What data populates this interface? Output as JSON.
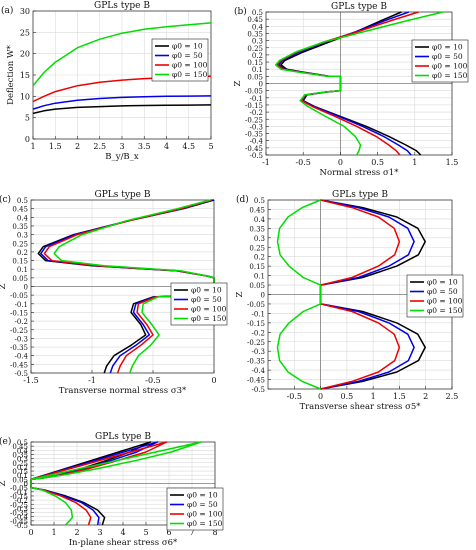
{
  "chart_data": [
    {
      "panel_label": "(a)",
      "type": "line",
      "title": "GPLs type B",
      "xlabel": "B_y/B_x",
      "ylabel": "Deflection W*",
      "xlim": [
        1,
        5
      ],
      "ylim": [
        0,
        30
      ],
      "xticks": [
        "1",
        "1.5",
        "2",
        "2.5",
        "3",
        "3.5",
        "4",
        "4.5",
        "5"
      ],
      "yticks": [
        "0",
        "5",
        "10",
        "15",
        "20",
        "25",
        "30"
      ],
      "grid": true,
      "legend": "center-right",
      "series": [
        {
          "name": "φ0 = 10",
          "color": "#000000",
          "x": [
            1,
            1.25,
            1.5,
            2,
            2.5,
            3,
            3.5,
            4,
            4.5,
            5
          ],
          "y": [
            6.0,
            6.6,
            7.0,
            7.4,
            7.6,
            7.75,
            7.85,
            7.9,
            7.95,
            8.0
          ]
        },
        {
          "name": "φ0 = 50",
          "color": "#0000ee",
          "x": [
            1,
            1.25,
            1.5,
            2,
            2.5,
            3,
            3.5,
            4,
            4.5,
            5
          ],
          "y": [
            7.0,
            7.8,
            8.4,
            9.1,
            9.5,
            9.75,
            9.9,
            10.0,
            10.05,
            10.1
          ]
        },
        {
          "name": "φ0 = 100",
          "color": "#ee0000",
          "x": [
            1,
            1.25,
            1.5,
            2,
            2.5,
            3,
            3.5,
            4,
            4.5,
            5
          ],
          "y": [
            8.8,
            10.0,
            11.1,
            12.5,
            13.3,
            13.8,
            14.15,
            14.4,
            14.55,
            14.7
          ]
        },
        {
          "name": "φ0 = 150",
          "color": "#00dd00",
          "x": [
            1,
            1.25,
            1.5,
            2,
            2.5,
            3,
            3.5,
            4,
            4.5,
            5
          ],
          "y": [
            12.5,
            15.6,
            18.0,
            21.4,
            23.4,
            24.8,
            25.7,
            26.3,
            26.8,
            27.2
          ]
        }
      ]
    },
    {
      "panel_label": "(b)",
      "type": "line",
      "title": "GPLs type B",
      "xlabel": "Normal stress σ1*",
      "ylabel": "Z",
      "xlim": [
        -1,
        1.5
      ],
      "ylim": [
        -0.5,
        0.5
      ],
      "xticks": [
        "-1",
        "-0.5",
        "0",
        "0.5",
        "1",
        "1.5"
      ],
      "yticks": [
        "-0.5",
        "-0.45",
        "-0.4",
        "-0.35",
        "-0.3",
        "-0.25",
        "-0.2",
        "-0.15",
        "-0.1",
        "-0.05",
        "0",
        "0.05",
        "0.1",
        "0.15",
        "0.2",
        "0.25",
        "0.3",
        "0.35",
        "0.4",
        "0.45",
        "0.5"
      ],
      "grid": true,
      "legend": "right",
      "series": [
        {
          "name": "φ0 = 10",
          "color": "#000000",
          "x": [
            0.82,
            0.55,
            0.2,
            -0.15,
            -0.5,
            -0.75,
            -0.8,
            -0.72,
            -0.5,
            -0.15,
            0,
            0,
            -0.2,
            -0.45,
            -0.5,
            -0.35,
            0,
            0.35,
            0.65,
            0.88,
            1.02,
            1.08
          ],
          "y": [
            0.5,
            0.44,
            0.36,
            0.29,
            0.22,
            0.16,
            0.13,
            0.1,
            0.08,
            0.05,
            0.05,
            -0.05,
            -0.06,
            -0.08,
            -0.12,
            -0.16,
            -0.23,
            -0.3,
            -0.37,
            -0.43,
            -0.47,
            -0.5
          ]
        },
        {
          "name": "φ0 = 50",
          "color": "#0000ee",
          "x": [
            0.92,
            0.6,
            0.2,
            -0.2,
            -0.55,
            -0.78,
            -0.83,
            -0.75,
            -0.52,
            -0.16,
            0,
            0,
            -0.2,
            -0.46,
            -0.51,
            -0.36,
            -0.02,
            0.3,
            0.58,
            0.78,
            0.9,
            0.95
          ],
          "y": [
            0.5,
            0.44,
            0.36,
            0.29,
            0.22,
            0.16,
            0.13,
            0.1,
            0.08,
            0.05,
            0.05,
            -0.05,
            -0.06,
            -0.08,
            -0.12,
            -0.16,
            -0.23,
            -0.3,
            -0.37,
            -0.43,
            -0.47,
            -0.5
          ]
        },
        {
          "name": "φ0 = 100",
          "color": "#ee0000",
          "x": [
            1.05,
            0.68,
            0.22,
            -0.22,
            -0.58,
            -0.8,
            -0.85,
            -0.77,
            -0.54,
            -0.17,
            0,
            0,
            -0.21,
            -0.47,
            -0.52,
            -0.38,
            -0.07,
            0.22,
            0.48,
            0.65,
            0.75,
            0.8
          ],
          "y": [
            0.5,
            0.44,
            0.36,
            0.29,
            0.22,
            0.16,
            0.13,
            0.1,
            0.08,
            0.05,
            0.05,
            -0.05,
            -0.06,
            -0.08,
            -0.12,
            -0.16,
            -0.23,
            -0.3,
            -0.37,
            -0.43,
            -0.47,
            -0.5
          ]
        },
        {
          "name": "φ0 = 150",
          "color": "#00dd00",
          "x": [
            1.38,
            0.9,
            0.3,
            -0.22,
            -0.6,
            -0.82,
            -0.87,
            -0.8,
            -0.56,
            -0.18,
            0,
            0,
            -0.22,
            -0.48,
            -0.54,
            -0.44,
            -0.2,
            0.05,
            0.2,
            0.27,
            0.25,
            0.22
          ],
          "y": [
            0.5,
            0.44,
            0.36,
            0.29,
            0.22,
            0.16,
            0.13,
            0.1,
            0.08,
            0.05,
            0.05,
            -0.05,
            -0.06,
            -0.08,
            -0.12,
            -0.16,
            -0.23,
            -0.3,
            -0.37,
            -0.43,
            -0.47,
            -0.5
          ]
        }
      ]
    },
    {
      "panel_label": "(c)",
      "type": "line",
      "title": "GPLs type B",
      "xlabel": "Transverse normal stress σ3*",
      "ylabel": "Z",
      "xlim": [
        -1.5,
        0
      ],
      "ylim": [
        -0.5,
        0.5
      ],
      "xticks": [
        "-1.5",
        "-1",
        "-0.5",
        "0"
      ],
      "yticks": [
        "-0.5",
        "-0.45",
        "-0.4",
        "-0.35",
        "-0.3",
        "-0.25",
        "-0.2",
        "-0.15",
        "-0.1",
        "-0.05",
        "0",
        "0.05",
        "0.1",
        "0.15",
        "0.2",
        "0.25",
        "0.3",
        "0.35",
        "0.4",
        "0.45",
        "0.5"
      ],
      "grid": true,
      "legend": "lower-right",
      "series": [
        {
          "name": "φ0 = 10",
          "color": "#000000",
          "x": [
            0,
            -0.25,
            -0.7,
            -1.15,
            -1.4,
            -1.44,
            -1.38,
            -1.0,
            -0.3,
            -0.05,
            0,
            0,
            -0.5,
            -0.66,
            -0.68,
            -0.6,
            -0.56,
            -0.68,
            -0.82,
            -0.88,
            -0.9
          ],
          "y": [
            0.5,
            0.45,
            0.38,
            0.3,
            0.23,
            0.19,
            0.15,
            0.12,
            0.09,
            0.06,
            0.05,
            -0.05,
            -0.06,
            -0.1,
            -0.15,
            -0.22,
            -0.28,
            -0.34,
            -0.4,
            -0.46,
            -0.5
          ]
        },
        {
          "name": "φ0 = 50",
          "color": "#0000ee",
          "x": [
            -0.01,
            -0.26,
            -0.7,
            -1.14,
            -1.38,
            -1.42,
            -1.36,
            -0.98,
            -0.3,
            -0.05,
            0,
            0,
            -0.49,
            -0.64,
            -0.66,
            -0.58,
            -0.53,
            -0.64,
            -0.77,
            -0.83,
            -0.85
          ],
          "y": [
            0.5,
            0.45,
            0.38,
            0.3,
            0.23,
            0.19,
            0.15,
            0.12,
            0.09,
            0.06,
            0.05,
            -0.05,
            -0.06,
            -0.1,
            -0.15,
            -0.22,
            -0.28,
            -0.34,
            -0.4,
            -0.46,
            -0.5
          ]
        },
        {
          "name": "φ0 = 100",
          "color": "#ee0000",
          "x": [
            -0.02,
            -0.27,
            -0.7,
            -1.12,
            -1.35,
            -1.39,
            -1.33,
            -0.96,
            -0.29,
            -0.05,
            0,
            0,
            -0.48,
            -0.62,
            -0.63,
            -0.55,
            -0.5,
            -0.6,
            -0.72,
            -0.77,
            -0.79
          ],
          "y": [
            0.5,
            0.45,
            0.38,
            0.3,
            0.23,
            0.19,
            0.15,
            0.12,
            0.09,
            0.06,
            0.05,
            -0.05,
            -0.06,
            -0.1,
            -0.15,
            -0.22,
            -0.28,
            -0.34,
            -0.4,
            -0.46,
            -0.5
          ]
        },
        {
          "name": "φ0 = 150",
          "color": "#00dd00",
          "x": [
            -0.03,
            -0.3,
            -0.72,
            -1.08,
            -1.27,
            -1.31,
            -1.25,
            -0.9,
            -0.27,
            -0.05,
            0,
            0,
            -0.46,
            -0.58,
            -0.59,
            -0.51,
            -0.45,
            -0.52,
            -0.62,
            -0.67,
            -0.69
          ],
          "y": [
            0.5,
            0.45,
            0.38,
            0.3,
            0.23,
            0.19,
            0.15,
            0.12,
            0.09,
            0.06,
            0.05,
            -0.05,
            -0.06,
            -0.1,
            -0.15,
            -0.22,
            -0.28,
            -0.34,
            -0.4,
            -0.46,
            -0.5
          ]
        }
      ]
    },
    {
      "panel_label": "(d)",
      "type": "line",
      "title": "GPLs type B",
      "xlabel": "Transverse shear stress σ5*",
      "ylabel": "Z",
      "xlim": [
        -1,
        2.5
      ],
      "ylim": [
        -0.5,
        0.5
      ],
      "xticks": [
        "-0.5",
        "0",
        "0.5",
        "1",
        "1.5",
        "2",
        "2.5"
      ],
      "yticks": [
        "-0.5",
        "-0.45",
        "-0.4",
        "-0.35",
        "-0.3",
        "-0.25",
        "-0.2",
        "-0.15",
        "-0.1",
        "-0.05",
        "0",
        "0.05",
        "0.1",
        "0.15",
        "0.2",
        "0.25",
        "0.3",
        "0.35",
        "0.4",
        "0.45",
        "0.5"
      ],
      "grid": true,
      "legend": "center-right",
      "series": [
        {
          "name": "φ0 = 10",
          "color": "#000000",
          "x": [
            0,
            0.8,
            1.45,
            1.85,
            1.99,
            1.86,
            1.45,
            0.8,
            0,
            0,
            0.8,
            1.45,
            1.85,
            1.99,
            1.86,
            1.45,
            0.8,
            0
          ],
          "y": [
            0.5,
            0.46,
            0.41,
            0.35,
            0.28,
            0.21,
            0.15,
            0.09,
            0.05,
            -0.05,
            -0.09,
            -0.15,
            -0.21,
            -0.28,
            -0.35,
            -0.41,
            -0.46,
            -0.5
          ]
        },
        {
          "name": "φ0 = 50",
          "color": "#0000ee",
          "x": [
            0,
            0.72,
            1.3,
            1.66,
            1.78,
            1.67,
            1.3,
            0.72,
            0,
            0,
            0.72,
            1.3,
            1.66,
            1.78,
            1.67,
            1.3,
            0.72,
            0
          ],
          "y": [
            0.5,
            0.46,
            0.41,
            0.35,
            0.28,
            0.21,
            0.15,
            0.09,
            0.05,
            -0.05,
            -0.09,
            -0.15,
            -0.21,
            -0.28,
            -0.35,
            -0.41,
            -0.46,
            -0.5
          ]
        },
        {
          "name": "φ0 = 100",
          "color": "#ee0000",
          "x": [
            0,
            0.6,
            1.1,
            1.4,
            1.5,
            1.41,
            1.1,
            0.6,
            0,
            0,
            0.6,
            1.1,
            1.4,
            1.5,
            1.41,
            1.1,
            0.6,
            0
          ],
          "y": [
            0.5,
            0.46,
            0.41,
            0.35,
            0.28,
            0.21,
            0.15,
            0.09,
            0.05,
            -0.05,
            -0.09,
            -0.15,
            -0.21,
            -0.28,
            -0.35,
            -0.41,
            -0.46,
            -0.5
          ]
        },
        {
          "name": "φ0 = 150",
          "color": "#00dd00",
          "x": [
            0,
            -0.35,
            -0.62,
            -0.78,
            -0.82,
            -0.77,
            -0.6,
            -0.33,
            0,
            0,
            -0.33,
            -0.6,
            -0.77,
            -0.82,
            -0.78,
            -0.62,
            -0.35,
            0
          ],
          "y": [
            0.5,
            0.46,
            0.41,
            0.35,
            0.28,
            0.21,
            0.15,
            0.09,
            0.05,
            -0.05,
            -0.09,
            -0.15,
            -0.21,
            -0.28,
            -0.35,
            -0.41,
            -0.46,
            -0.5
          ]
        }
      ]
    },
    {
      "panel_label": "(e)",
      "type": "line",
      "title": "GPLs type B",
      "xlabel": "In-plane shear stress σ6*",
      "ylabel": "Z",
      "xlim": [
        0,
        8
      ],
      "ylim": [
        -0.5,
        0.5
      ],
      "xticks": [
        "0",
        "1",
        "2",
        "3",
        "4",
        "5",
        "6",
        "7",
        "8"
      ],
      "yticks": [
        "-0.5",
        "-0.45",
        "-0.4",
        "-0.35",
        "-0.3",
        "-0.25",
        "-0.2",
        "-0.15",
        "-0.1",
        "-0.05",
        "0",
        "0.05",
        "0.1",
        "0.15",
        "0.2",
        "0.25",
        "0.3",
        "0.35",
        "0.4",
        "0.45",
        "0.5"
      ],
      "grid": true,
      "legend": "right",
      "series": [
        {
          "name": "φ0 = 10",
          "color": "#000000",
          "x": [
            0,
            0.6,
            1.2,
            2.2,
            3.3,
            4.3,
            5.2,
            5.2,
            0,
            0,
            0.6,
            1.5,
            2.3,
            2.9,
            3.2,
            3.1
          ],
          "y": [
            0.05,
            0.07,
            0.1,
            0.18,
            0.28,
            0.38,
            0.5,
            0.5,
            0.05,
            -0.05,
            -0.08,
            -0.15,
            -0.23,
            -0.32,
            -0.41,
            -0.5
          ]
        },
        {
          "name": "φ0 = 50",
          "color": "#0000ee",
          "x": [
            0,
            0.6,
            1.2,
            2.3,
            3.5,
            4.6,
            5.5,
            5.5,
            0,
            0,
            0.6,
            1.4,
            2.2,
            2.7,
            2.95,
            2.9
          ],
          "y": [
            0.05,
            0.07,
            0.1,
            0.18,
            0.28,
            0.38,
            0.5,
            0.5,
            0.05,
            -0.05,
            -0.08,
            -0.15,
            -0.23,
            -0.32,
            -0.41,
            -0.5
          ]
        },
        {
          "name": "φ0 = 100",
          "color": "#ee0000",
          "x": [
            0,
            0.6,
            1.25,
            2.5,
            3.8,
            5.0,
            5.9,
            5.9,
            0,
            0,
            0.55,
            1.3,
            1.95,
            2.4,
            2.6,
            2.5
          ],
          "y": [
            0.05,
            0.07,
            0.1,
            0.18,
            0.28,
            0.38,
            0.5,
            0.5,
            0.05,
            -0.05,
            -0.08,
            -0.15,
            -0.23,
            -0.32,
            -0.41,
            -0.5
          ]
        },
        {
          "name": "φ0 = 150",
          "color": "#00dd00",
          "x": [
            0,
            0.6,
            1.35,
            2.9,
            4.6,
            6.1,
            7.4,
            7.4,
            0,
            0,
            0.5,
            1.05,
            1.5,
            1.75,
            1.8,
            1.5
          ],
          "y": [
            0.05,
            0.07,
            0.1,
            0.18,
            0.28,
            0.38,
            0.5,
            0.5,
            0.05,
            -0.05,
            -0.08,
            -0.15,
            -0.23,
            -0.32,
            -0.41,
            -0.5
          ]
        }
      ]
    }
  ]
}
